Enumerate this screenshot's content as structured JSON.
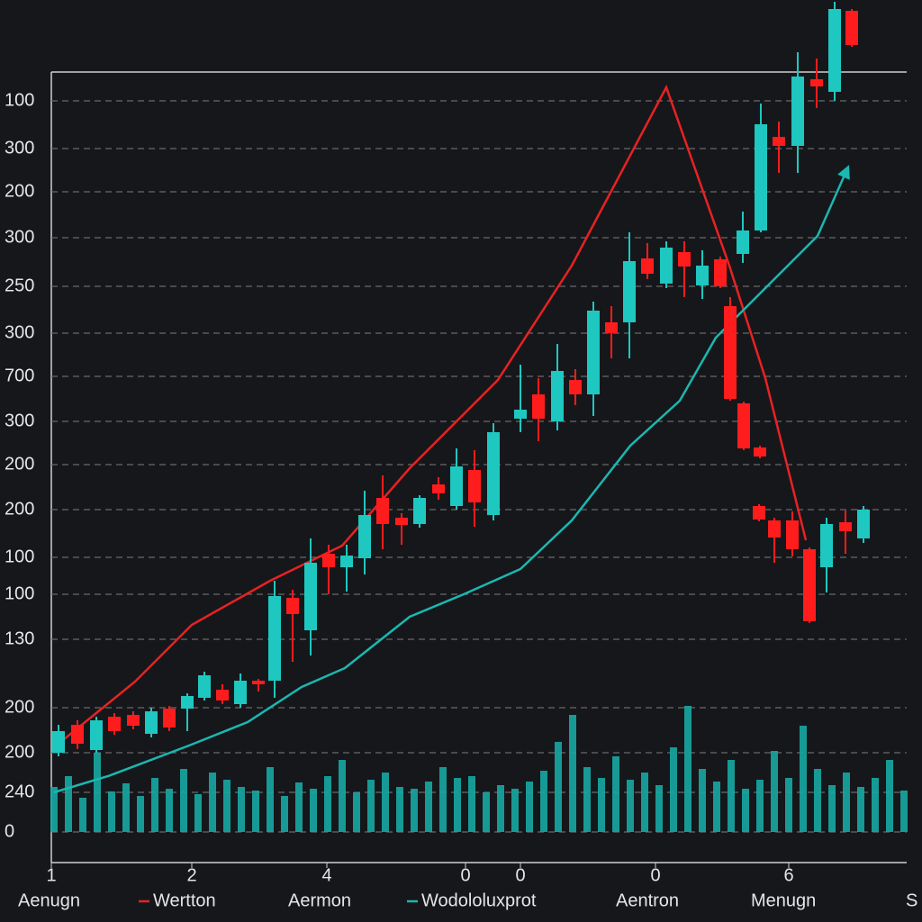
{
  "chart_data": {
    "type": "candlestick",
    "xlim": [
      0,
      950
    ],
    "xticks": [
      {
        "value": 0,
        "label": "1"
      },
      {
        "value": 156,
        "label": "2"
      },
      {
        "value": 306,
        "label": "4"
      },
      {
        "value": 460,
        "label": "0"
      },
      {
        "value": 521,
        "label": "0"
      },
      {
        "value": 671,
        "label": "0"
      },
      {
        "value": 819,
        "label": "6"
      }
    ],
    "ylim": [
      0,
      844
    ],
    "yticks": [
      {
        "value": 812,
        "label": "100"
      },
      {
        "value": 759,
        "label": "300"
      },
      {
        "value": 711,
        "label": "200"
      },
      {
        "value": 660,
        "label": "300"
      },
      {
        "value": 606,
        "label": "250"
      },
      {
        "value": 554,
        "label": "300"
      },
      {
        "value": 506,
        "label": "700"
      },
      {
        "value": 456,
        "label": "300"
      },
      {
        "value": 408,
        "label": "200"
      },
      {
        "value": 358,
        "label": "200"
      },
      {
        "value": 305,
        "label": "100"
      },
      {
        "value": 264,
        "label": "100"
      },
      {
        "value": 214,
        "label": "130"
      },
      {
        "value": 138,
        "label": "200"
      },
      {
        "value": 88,
        "label": "200"
      },
      {
        "value": 44,
        "label": "240"
      },
      0
    ],
    "grid": true,
    "up_color": "#1ec8c0",
    "down_color": "#ff1c1c",
    "x": [
      8,
      29,
      50,
      70,
      91,
      111,
      131,
      151,
      170,
      190,
      210,
      230,
      248,
      268,
      288,
      308,
      328,
      348,
      368,
      389,
      409,
      430,
      450,
      470,
      491,
      521,
      541,
      562,
      582,
      602,
      622,
      642,
      662,
      683,
      703,
      723,
      743,
      754,
      769,
      768,
      787,
      788,
      786,
      808,
      803,
      829,
      823,
      842,
      850,
      861,
      870,
      882,
      889,
      902
    ],
    "open": [
      88,
      119,
      91,
      128,
      130,
      109,
      137,
      137,
      149,
      158,
      142,
      168,
      168,
      260,
      224,
      309,
      294,
      304,
      371,
      349,
      342,
      386,
      362,
      402,
      352,
      459,
      486,
      456,
      502,
      486,
      566,
      566,
      637,
      609,
      644,
      607,
      636,
      584,
      476,
      642,
      427,
      668,
      362,
      772,
      346,
      762,
      346,
      314,
      836,
      294,
      822,
      344,
      912,
      326
    ],
    "high": [
      119,
      124,
      128,
      132,
      134,
      138,
      140,
      154,
      178,
      164,
      176,
      170,
      279,
      269,
      326,
      319,
      319,
      379,
      396,
      354,
      374,
      394,
      426,
      424,
      454,
      519,
      504,
      542,
      514,
      589,
      584,
      666,
      654,
      656,
      656,
      646,
      639,
      594,
      478,
      689,
      429,
      809,
      364,
      789,
      349,
      866,
      356,
      316,
      859,
      349,
      922,
      357,
      914,
      362
    ],
    "low": [
      84,
      92,
      88,
      108,
      114,
      105,
      112,
      112,
      146,
      142,
      138,
      156,
      149,
      189,
      196,
      264,
      267,
      286,
      314,
      319,
      338,
      369,
      358,
      339,
      346,
      444,
      434,
      446,
      474,
      462,
      526,
      526,
      614,
      604,
      594,
      592,
      604,
      479,
      424,
      632,
      415,
      666,
      345,
      732,
      299,
      732,
      306,
      232,
      804,
      266,
      812,
      309,
      872,
      321
    ],
    "close": [
      112,
      98,
      124,
      112,
      118,
      134,
      116,
      151,
      174,
      146,
      168,
      164,
      262,
      242,
      299,
      294,
      307,
      352,
      342,
      341,
      371,
      376,
      406,
      366,
      444,
      469,
      459,
      512,
      486,
      579,
      554,
      634,
      620,
      649,
      628,
      629,
      606,
      481,
      426,
      668,
      417,
      786,
      347,
      762,
      327,
      839,
      314,
      234,
      828,
      342,
      914,
      334,
      874,
      358
    ],
    "series": [
      {
        "name": "Wertton",
        "color": "#e82222",
        "x": [
          3,
          93,
          156,
          243,
          323,
          398,
          496,
          578,
          683,
          753,
          793,
          838
        ],
        "values": [
          94,
          167,
          230,
          279,
          318,
          404,
          502,
          629,
          827,
          629,
          504,
          324
        ]
      },
      {
        "name": "Wodololuxprot",
        "color": "#1ab8b0",
        "x": [
          3,
          63,
          153,
          218,
          278,
          326,
          398,
          458,
          521,
          578,
          643,
          698,
          738,
          773,
          851,
          883
        ],
        "values": [
          44,
          62,
          96,
          122,
          161,
          182,
          239,
          264,
          292,
          346,
          429,
          479,
          549,
          584,
          662,
          734
        ]
      }
    ],
    "volume": {
      "color": "#17a9a3",
      "x": [
        3,
        19,
        35,
        51,
        67,
        83,
        99,
        115,
        131,
        147,
        163,
        179,
        195,
        211,
        227,
        243,
        259,
        275,
        291,
        307,
        323,
        339,
        355,
        371,
        387,
        403,
        419,
        435,
        451,
        467,
        483,
        499,
        515,
        531,
        547,
        563,
        579,
        595,
        611,
        627,
        643,
        659,
        675,
        691,
        707,
        723,
        739,
        755,
        771,
        787,
        803,
        819,
        835,
        851,
        867,
        883,
        899,
        915,
        931,
        947
      ],
      "values": [
        50,
        62,
        38,
        88,
        45,
        54,
        40,
        60,
        48,
        70,
        42,
        66,
        58,
        50,
        46,
        72,
        40,
        55,
        48,
        62,
        80,
        44,
        58,
        66,
        50,
        48,
        56,
        72,
        60,
        62,
        44,
        52,
        48,
        56,
        68,
        100,
        130,
        72,
        60,
        84,
        58,
        66,
        52,
        94,
        140,
        70,
        56,
        80,
        48,
        58,
        90,
        60,
        118,
        70,
        52,
        66,
        50,
        60,
        80,
        46
      ]
    },
    "footer_labels": [
      "Aenugn",
      "Aermon",
      "Aentron",
      "Menugn",
      "S"
    ]
  }
}
